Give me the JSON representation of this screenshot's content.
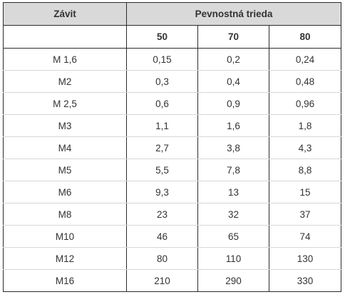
{
  "header": {
    "thread_label": "Závit",
    "strength_label": "Pevnostná trieda"
  },
  "classes": [
    "50",
    "70",
    "80"
  ],
  "rows": [
    {
      "thread": "M 1,6",
      "values": [
        "0,15",
        "0,2",
        "0,24"
      ]
    },
    {
      "thread": "M2",
      "values": [
        "0,3",
        "0,4",
        "0,48"
      ]
    },
    {
      "thread": "M 2,5",
      "values": [
        "0,6",
        "0,9",
        "0,96"
      ]
    },
    {
      "thread": "M3",
      "values": [
        "1,1",
        "1,6",
        "1,8"
      ]
    },
    {
      "thread": "M4",
      "values": [
        "2,7",
        "3,8",
        "4,3"
      ]
    },
    {
      "thread": "M5",
      "values": [
        "5,5",
        "7,8",
        "8,8"
      ]
    },
    {
      "thread": "M6",
      "values": [
        "9,3",
        "13",
        "15"
      ]
    },
    {
      "thread": "M8",
      "values": [
        "23",
        "32",
        "37"
      ]
    },
    {
      "thread": "M10",
      "values": [
        "46",
        "65",
        "74"
      ]
    },
    {
      "thread": "M12",
      "values": [
        "80",
        "110",
        "130"
      ]
    },
    {
      "thread": "M16",
      "values": [
        "210",
        "290",
        "330"
      ]
    }
  ]
}
